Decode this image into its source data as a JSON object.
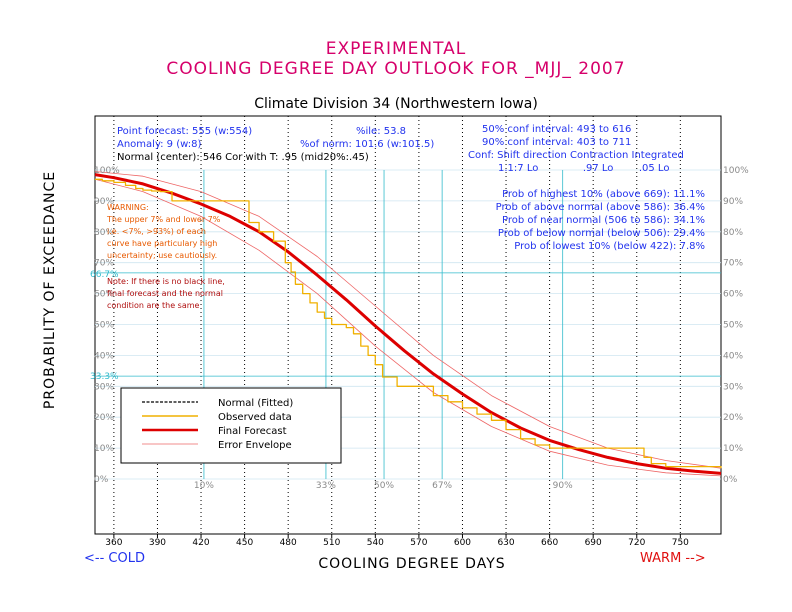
{
  "header": {
    "title_line1": "EXPERIMENTAL",
    "title_line2": "COOLING DEGREE DAY OUTLOOK FOR _MJJ_ 2007",
    "subtitle": "Climate Division 34 (Northwestern Iowa)"
  },
  "stats": {
    "point_forecast": "Point forecast: 555 (w:554)",
    "anomaly": "Anomaly: 9 (w:8)",
    "normal_center": "Normal (center): 546   Cor with T: .95 (mid20%:.45)",
    "percentile": "%ile: 53.8",
    "pct_of_norm": "%of norm: 101.6 (w:101.5)",
    "conf50": "50% conf interval: 493 to 616",
    "conf90": "90% conf interval: 403 to 711",
    "conf_header": "Conf: Shift direction   Contraction   Integrated",
    "conf_values": "1.1:7 Lo              .97 Lo        .05 Lo"
  },
  "probabilities": {
    "highest": "Prob of highest 10% (above 669): 11.1%",
    "above": "Prob of above normal (above 586): 36.4%",
    "near": "Prob of near normal (506 to 586): 34.1%",
    "below": "Prob of below normal (below 506): 29.4%",
    "lowest": "Prob of lowest 10% (below 422): 7.8%"
  },
  "warning": {
    "lines": [
      "WARNING:",
      "The upper 7% and lower 7%",
      "i.e. <7%, >93%) of each",
      "curve have particulary high",
      "uncertainty; use cautiously."
    ]
  },
  "note": {
    "lines": [
      "Note: If there is no black line,",
      "final forecast and  the normal",
      "condition are the same"
    ]
  },
  "axes": {
    "ylabel": "PROBABILITY OF EXCEEDANCE",
    "xlabel": "COOLING DEGREE DAYS",
    "cold_label": "<-- COLD",
    "warm_label": "WARM -->",
    "left_markers": [
      "66.7%",
      "33.3%"
    ],
    "percentile_labels": [
      "10%",
      "33%",
      "50%",
      "67%",
      "90%"
    ]
  },
  "legend": {
    "items": [
      "Normal (Fitted)",
      "Observed data",
      "Final Forecast",
      "Error Envelope"
    ]
  },
  "colors": {
    "title": "#d6006b",
    "forecast": "#dd0000",
    "observed": "#f0b000",
    "envelope": "#ee6666",
    "reference": "#33bbcc",
    "info_text": "#2233ee"
  },
  "chart_data": {
    "type": "line",
    "xlim": [
      347,
      778
    ],
    "ylim": [
      0,
      100
    ],
    "x_ticks": [
      360,
      390,
      420,
      450,
      480,
      510,
      540,
      570,
      600,
      630,
      660,
      690,
      720,
      750
    ],
    "y_ticks": [
      0,
      10,
      20,
      30,
      40,
      50,
      60,
      70,
      80,
      90,
      100
    ],
    "y_tick_labels": [
      "0%",
      "10%",
      "20%",
      "30%",
      "40%",
      "50%",
      "60%",
      "70%",
      "80%",
      "90%",
      "100%"
    ],
    "reference_lines_y": [
      66.7,
      33.3
    ],
    "percentile_markers": [
      {
        "label": "10%",
        "x": 422
      },
      {
        "label": "33%",
        "x": 506
      },
      {
        "label": "50%",
        "x": 546
      },
      {
        "label": "67%",
        "x": 586
      },
      {
        "label": "90%",
        "x": 669
      }
    ],
    "series": [
      {
        "name": "Final Forecast",
        "x": [
          347,
          360,
          380,
          400,
          420,
          440,
          460,
          480,
          500,
          520,
          540,
          560,
          580,
          600,
          620,
          640,
          660,
          680,
          700,
          720,
          740,
          760,
          778
        ],
        "y": [
          98.5,
          97.5,
          95.5,
          92.5,
          89,
          85,
          80,
          73.5,
          66,
          58,
          49.5,
          41.5,
          34,
          27.5,
          21.5,
          16.5,
          12.5,
          9.5,
          7,
          5,
          3.5,
          2.5,
          1.8
        ]
      },
      {
        "name": "Error Envelope",
        "x": [
          347,
          380,
          420,
          460,
          500,
          540,
          580,
          620,
          660,
          700,
          740,
          778
        ],
        "y": [
          99.5,
          98,
          93,
          85,
          72,
          56,
          40,
          27,
          17,
          10,
          6,
          3.5
        ]
      },
      {
        "name": "Error Envelope",
        "x": [
          347,
          380,
          420,
          460,
          500,
          540,
          580,
          620,
          660,
          700,
          740,
          778
        ],
        "y": [
          97,
          93,
          85,
          74,
          60,
          43,
          28,
          17,
          9,
          4.5,
          2,
          1
        ]
      },
      {
        "name": "Observed data",
        "step": true,
        "x": [
          347,
          352,
          360,
          368,
          375,
          380,
          386,
          392,
          400,
          420,
          440,
          453,
          460,
          470,
          478,
          482,
          485,
          490,
          495,
          500,
          505,
          510,
          520,
          525,
          530,
          535,
          540,
          545,
          555,
          565,
          575,
          580,
          590,
          600,
          610,
          620,
          630,
          640,
          650,
          660,
          670,
          680,
          700,
          720,
          725,
          730,
          740,
          778
        ],
        "y": [
          97,
          96.5,
          96,
          95,
          94,
          93.5,
          93.2,
          93,
          90,
          90,
          90,
          83,
          80,
          77,
          70,
          67,
          63,
          60,
          57,
          54,
          52,
          50,
          49,
          47,
          43,
          40,
          37,
          33,
          30,
          30,
          30,
          27,
          25,
          23,
          21,
          19,
          16,
          13,
          11,
          10,
          10,
          10,
          10,
          10,
          7,
          5,
          4,
          3.5
        ]
      }
    ]
  }
}
